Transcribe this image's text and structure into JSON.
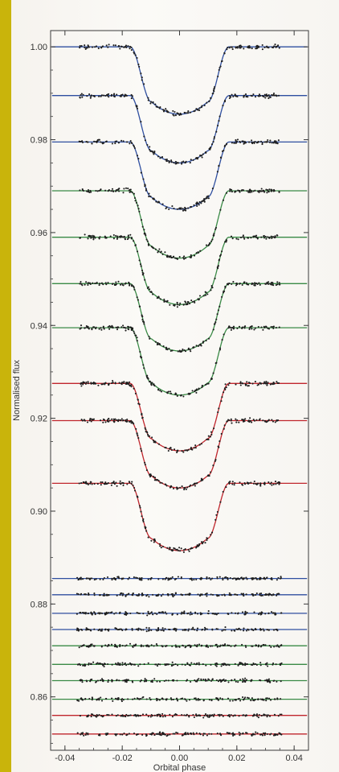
{
  "chart_data": {
    "type": "scatter",
    "title": "",
    "xlabel": "Orbital phase",
    "ylabel": "Normalised flux",
    "xlim": [
      -0.045,
      0.045
    ],
    "ylim": [
      0.8485,
      1.0035
    ],
    "x_ticks": [
      -0.04,
      -0.02,
      0.0,
      0.02,
      0.04
    ],
    "x_tick_labels": [
      "-0.04",
      "-0.02",
      "0.00",
      "0.02",
      "0.04"
    ],
    "y_ticks": [
      0.86,
      0.88,
      0.9,
      0.92,
      0.94,
      0.96,
      0.98,
      1.0
    ],
    "y_tick_labels": [
      "0.86",
      "0.88",
      "0.90",
      "0.92",
      "0.94",
      "0.96",
      "0.98",
      "1.00"
    ],
    "grid": false,
    "legend": "none",
    "transit": {
      "t14_phase": 0.0345,
      "t23_phase": 0.0195
    },
    "series": [
      {
        "baseline": 1.0,
        "depth": 0.0145,
        "color": "#2f4fa0",
        "x_range": [
          -0.035,
          0.035
        ]
      },
      {
        "baseline": 0.9895,
        "depth": 0.0145,
        "color": "#2f4fa0",
        "x_range": [
          -0.035,
          0.035
        ]
      },
      {
        "baseline": 0.9795,
        "depth": 0.0145,
        "color": "#2f4fa0",
        "x_range": [
          -0.035,
          0.035
        ]
      },
      {
        "baseline": 0.969,
        "depth": 0.0145,
        "color": "#3a8a46",
        "x_range": [
          -0.035,
          0.035
        ]
      },
      {
        "baseline": 0.959,
        "depth": 0.0145,
        "color": "#3a8a46",
        "x_range": [
          -0.035,
          0.035
        ]
      },
      {
        "baseline": 0.949,
        "depth": 0.0145,
        "color": "#3a8a46",
        "x_range": [
          -0.035,
          0.035
        ]
      },
      {
        "baseline": 0.9395,
        "depth": 0.0145,
        "color": "#3a8a46",
        "x_range": [
          -0.035,
          0.035
        ]
      },
      {
        "baseline": 0.9275,
        "depth": 0.0145,
        "color": "#c0262d",
        "x_range": [
          -0.035,
          0.035
        ]
      },
      {
        "baseline": 0.9195,
        "depth": 0.0145,
        "color": "#c0262d",
        "x_range": [
          -0.035,
          0.035
        ]
      },
      {
        "baseline": 0.906,
        "depth": 0.0145,
        "color": "#c0262d",
        "x_range": [
          -0.035,
          0.035
        ]
      },
      {
        "baseline": 0.8855,
        "depth": 0.0,
        "color": "#2f4fa0",
        "x_range": [
          -0.036,
          0.036
        ]
      },
      {
        "baseline": 0.882,
        "depth": 0.0,
        "color": "#2f4fa0",
        "x_range": [
          -0.036,
          0.036
        ]
      },
      {
        "baseline": 0.878,
        "depth": 0.0,
        "color": "#2f4fa0",
        "x_range": [
          -0.036,
          0.036
        ]
      },
      {
        "baseline": 0.8745,
        "depth": 0.0,
        "color": "#2f4fa0",
        "x_range": [
          -0.036,
          0.036
        ]
      },
      {
        "baseline": 0.871,
        "depth": 0.0,
        "color": "#3a8a46",
        "x_range": [
          -0.036,
          0.036
        ]
      },
      {
        "baseline": 0.867,
        "depth": 0.0,
        "color": "#3a8a46",
        "x_range": [
          -0.036,
          0.036
        ]
      },
      {
        "baseline": 0.8635,
        "depth": 0.0,
        "color": "#3a8a46",
        "x_range": [
          -0.036,
          0.036
        ]
      },
      {
        "baseline": 0.8595,
        "depth": 0.0,
        "color": "#3a8a46",
        "x_range": [
          -0.036,
          0.036
        ]
      },
      {
        "baseline": 0.856,
        "depth": 0.0,
        "color": "#c0262d",
        "x_range": [
          -0.036,
          0.036
        ]
      },
      {
        "baseline": 0.852,
        "depth": 0.0,
        "color": "#c0262d",
        "x_range": [
          -0.036,
          0.036
        ]
      }
    ]
  },
  "colors": {
    "spine": "#c9b40b",
    "points": "#1e1e1e",
    "axis": "#3a3a3a",
    "paper": "#f8f6f2"
  }
}
